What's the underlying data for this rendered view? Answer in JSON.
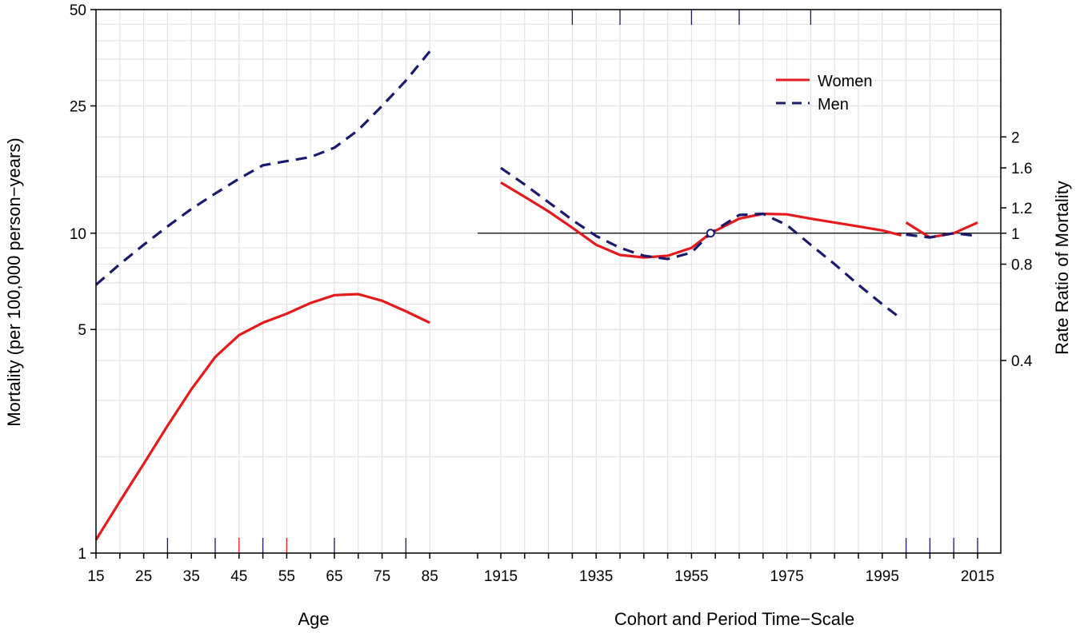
{
  "chart_data": {
    "type": "line",
    "title": "",
    "y_left_label": "Mortality (per 100,000 person−years)",
    "y_right_label": "Rate Ratio of Mortality",
    "age_panel": {
      "xlabel": "Age",
      "x_ticks": [
        "15",
        "25",
        "35",
        "45",
        "55",
        "65",
        "75",
        "85"
      ],
      "series": [
        {
          "name": "Women",
          "color": "#e41a1c",
          "style": "solid",
          "x": [
            15,
            20,
            25,
            30,
            35,
            40,
            45,
            50,
            55,
            60,
            65,
            70,
            75,
            80,
            85
          ],
          "values": [
            1.1,
            1.45,
            1.9,
            2.5,
            3.25,
            4.1,
            4.8,
            5.25,
            5.6,
            6.05,
            6.4,
            6.45,
            6.15,
            5.7,
            5.25
          ]
        },
        {
          "name": "Men",
          "color": "#1a1a6e",
          "style": "dashed",
          "x": [
            15,
            20,
            25,
            30,
            35,
            40,
            45,
            50,
            55,
            60,
            65,
            70,
            75,
            80,
            85
          ],
          "values": [
            6.9,
            8.0,
            9.2,
            10.5,
            11.9,
            13.3,
            14.8,
            16.3,
            16.8,
            17.3,
            18.5,
            21.0,
            25.0,
            30.0,
            37.0
          ]
        }
      ]
    },
    "cohort_period_panel": {
      "xlabel": "Cohort and Period Time−Scale",
      "x_ticks": [
        "1915",
        "1935",
        "1955",
        "1975",
        "1995",
        "2015"
      ],
      "y_right_ticks": [
        "2",
        "1.6",
        "1.2",
        "1",
        "0.8",
        "0.4"
      ],
      "reference_line": 1,
      "reference_point": {
        "x": 1959,
        "y": 1
      },
      "cohort_series": [
        {
          "name": "Women",
          "color": "#e41a1c",
          "style": "solid",
          "x": [
            1915,
            1920,
            1925,
            1930,
            1935,
            1940,
            1945,
            1950,
            1955,
            1959,
            1965,
            1970,
            1975,
            1980,
            1985,
            1990,
            1995,
            1999
          ],
          "values": [
            1.44,
            1.3,
            1.17,
            1.04,
            0.92,
            0.855,
            0.84,
            0.85,
            0.9,
            1.0,
            1.11,
            1.15,
            1.145,
            1.11,
            1.08,
            1.05,
            1.02,
            0.985
          ]
        },
        {
          "name": "Men",
          "color": "#1a1a6e",
          "style": "dashed",
          "x": [
            1915,
            1920,
            1925,
            1930,
            1935,
            1940,
            1945,
            1950,
            1955,
            1959,
            1965,
            1970,
            1975,
            1980,
            1985,
            1990,
            1995,
            1999
          ],
          "values": [
            1.6,
            1.42,
            1.25,
            1.1,
            0.98,
            0.9,
            0.85,
            0.83,
            0.87,
            1.0,
            1.14,
            1.15,
            1.06,
            0.92,
            0.8,
            0.69,
            0.6,
            0.54
          ]
        }
      ],
      "period_series": [
        {
          "name": "Women",
          "color": "#e41a1c",
          "style": "solid",
          "x": [
            2000,
            2005,
            2010,
            2015
          ],
          "values": [
            1.08,
            0.97,
            1.0,
            1.08
          ]
        },
        {
          "name": "Men",
          "color": "#1a1a6e",
          "style": "dashed",
          "x": [
            2000,
            2005,
            2010,
            2015
          ],
          "values": [
            0.99,
            0.97,
            1.0,
            0.98
          ]
        }
      ]
    },
    "y_left_ticks": [
      "50",
      "25",
      "10",
      "5",
      "1"
    ],
    "y_range": [
      1,
      50
    ],
    "legend": {
      "position": "top-right",
      "entries": [
        "Women",
        "Men"
      ]
    },
    "grid": true
  }
}
